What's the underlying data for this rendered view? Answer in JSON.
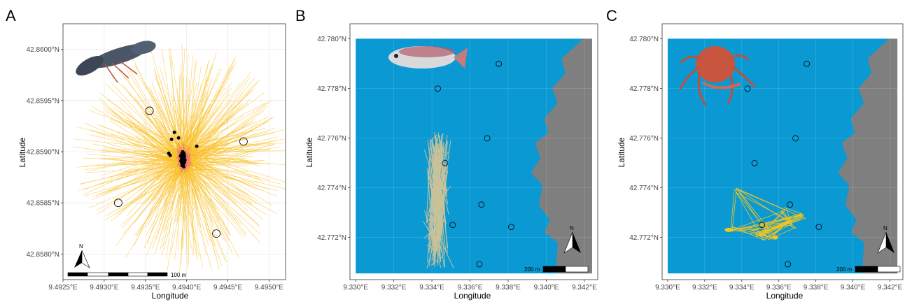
{
  "chart_data": [
    {
      "panel": "A",
      "type": "scatter",
      "xlabel": "Longitude",
      "ylabel": "Latitude",
      "xlim": [
        9.4925,
        9.4952
      ],
      "ylim": [
        42.85775,
        42.86025
      ],
      "x_ticks": [
        "9.4925°E",
        "9.4930°E",
        "9.4935°E",
        "9.4940°E",
        "9.4945°E",
        "9.4950°E"
      ],
      "x_tick_values": [
        9.4925,
        9.493,
        9.4935,
        9.494,
        9.4945,
        9.495
      ],
      "y_ticks": [
        "42.8580°N",
        "42.8585°N",
        "42.8590°N",
        "42.8595°N",
        "42.8600°N"
      ],
      "y_tick_values": [
        42.858,
        42.8585,
        42.859,
        42.8595,
        42.86
      ],
      "grid": true,
      "background": "white",
      "receivers": [
        {
          "x": 9.49355,
          "y": 42.8594
        },
        {
          "x": 9.49469,
          "y": 42.8591
        },
        {
          "x": 9.49317,
          "y": 42.8585
        },
        {
          "x": 9.49436,
          "y": 42.8582
        }
      ],
      "track_center": {
        "x": 9.49397,
        "y": 42.85893
      },
      "track_color": "#f9c22e",
      "core_color": "#f06b7d",
      "point_color": "#000000",
      "scalebar_label": "100 m",
      "north_label": "N"
    },
    {
      "panel": "B",
      "type": "scatter",
      "xlabel": "Longitude",
      "ylabel": "Latitude",
      "xlim": [
        9.3297,
        9.3427
      ],
      "ylim": [
        42.7703,
        42.7806
      ],
      "x_ticks": [
        "9.330°E",
        "9.332°E",
        "9.334°E",
        "9.336°E",
        "9.338°E",
        "9.340°E",
        "9.342°E"
      ],
      "x_tick_values": [
        9.33,
        9.332,
        9.334,
        9.336,
        9.338,
        9.34,
        9.342
      ],
      "y_ticks": [
        "42.772°N",
        "42.774°N",
        "42.776°N",
        "42.778°N",
        "42.780°N"
      ],
      "y_tick_values": [
        42.772,
        42.774,
        42.776,
        42.778,
        42.78
      ],
      "grid": true,
      "sea_color": "#0a99d2",
      "land_color": "#7f7f7f",
      "receivers": [
        {
          "x": 9.33751,
          "y": 42.77899
        },
        {
          "x": 9.33431,
          "y": 42.77799
        },
        {
          "x": 9.3369,
          "y": 42.77599
        },
        {
          "x": 9.33469,
          "y": 42.77499
        },
        {
          "x": 9.3366,
          "y": 42.77332
        },
        {
          "x": 9.33509,
          "y": 42.7725
        },
        {
          "x": 9.33816,
          "y": 42.77242
        },
        {
          "x": 9.33649,
          "y": 42.77092
        }
      ],
      "track_color": "#c9c299",
      "scalebar_label": "200 m",
      "north_label": "N"
    },
    {
      "panel": "C",
      "type": "scatter",
      "xlabel": "Longitude",
      "ylabel": "Latitude",
      "xlim": [
        9.3297,
        9.3427
      ],
      "ylim": [
        42.7703,
        42.7806
      ],
      "x_ticks": [
        "9.330°E",
        "9.332°E",
        "9.334°E",
        "9.336°E",
        "9.338°E",
        "9.340°E",
        "9.342°E"
      ],
      "x_tick_values": [
        9.33,
        9.332,
        9.334,
        9.336,
        9.338,
        9.34,
        9.342
      ],
      "y_ticks": [
        "42.772°N",
        "42.774°N",
        "42.776°N",
        "42.778°N",
        "42.780°N"
      ],
      "y_tick_values": [
        42.772,
        42.774,
        42.776,
        42.778,
        42.78
      ],
      "grid": true,
      "sea_color": "#0a99d2",
      "land_color": "#7f7f7f",
      "receivers": [
        {
          "x": 9.33751,
          "y": 42.77899
        },
        {
          "x": 9.33431,
          "y": 42.77799
        },
        {
          "x": 9.3369,
          "y": 42.77599
        },
        {
          "x": 9.33469,
          "y": 42.77499
        },
        {
          "x": 9.3366,
          "y": 42.77332
        },
        {
          "x": 9.33509,
          "y": 42.7725
        },
        {
          "x": 9.33816,
          "y": 42.77242
        },
        {
          "x": 9.33649,
          "y": 42.77092
        }
      ],
      "track_color": "#f5c51e",
      "scalebar_label": "200 m",
      "north_label": "N"
    }
  ]
}
